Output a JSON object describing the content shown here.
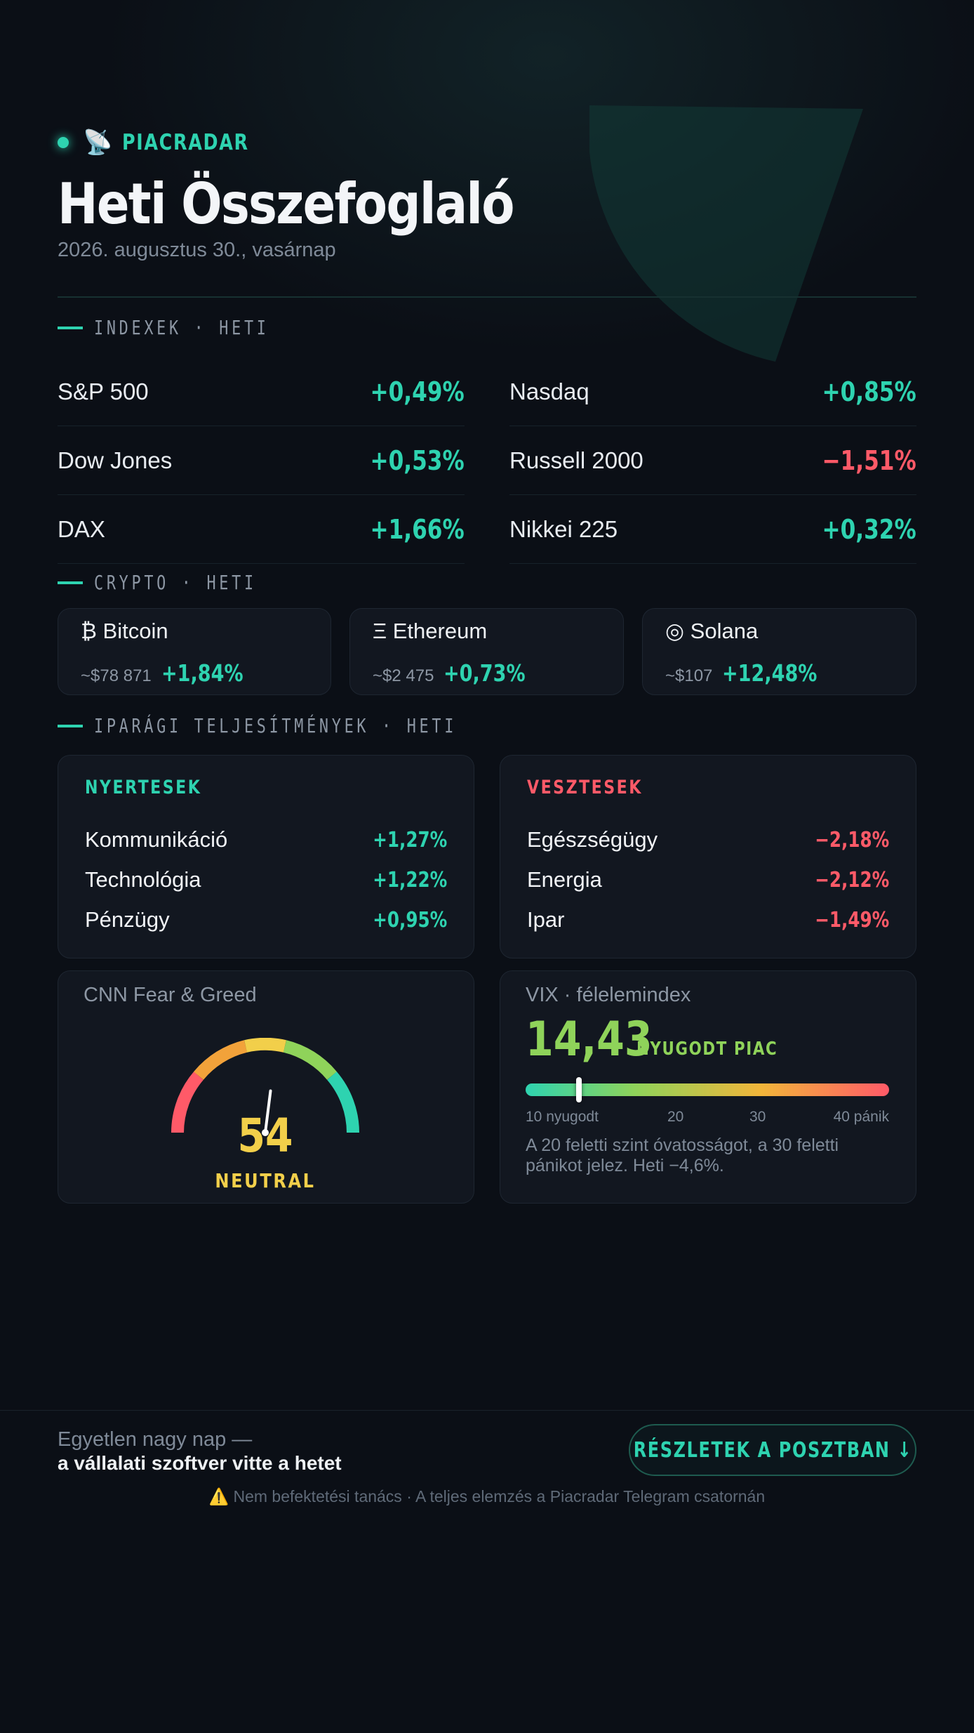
{
  "brand": {
    "icon": "📡",
    "name": "PIACRADAR"
  },
  "title": "Heti Összefoglaló",
  "date": "2026. augusztus 30., vasárnap",
  "indexes": {
    "label": "INDEXEK · HETI",
    "items": [
      {
        "name": "S&P 500",
        "change": "+0,49%",
        "direction": "up"
      },
      {
        "name": "Nasdaq",
        "change": "+0,85%",
        "direction": "up"
      },
      {
        "name": "Dow Jones",
        "change": "+0,53%",
        "direction": "up"
      },
      {
        "name": "Russell 2000",
        "change": "−1,51%",
        "direction": "down"
      },
      {
        "name": "DAX",
        "change": "+1,66%",
        "direction": "up"
      },
      {
        "name": "Nikkei 225",
        "change": "+0,32%",
        "direction": "up"
      }
    ]
  },
  "crypto": {
    "label": "CRYPTO · HETI",
    "items": [
      {
        "name": "₿ Bitcoin",
        "price": "~$78 871",
        "change": "+1,84%"
      },
      {
        "name": "Ξ Ethereum",
        "price": "~$2 475",
        "change": "+0,73%"
      },
      {
        "name": "◎ Solana",
        "price": "~$107",
        "change": "+12,48%"
      }
    ]
  },
  "sectors": {
    "label": "IPARÁGI TELJESÍTMÉNYEK · HETI",
    "winners": {
      "title": "NYERTESEK",
      "items": [
        {
          "name": "Kommunikáció",
          "change": "+1,27%"
        },
        {
          "name": "Technológia",
          "change": "+1,22%"
        },
        {
          "name": "Pénzügy",
          "change": "+0,95%"
        }
      ]
    },
    "losers": {
      "title": "VESZTESEK",
      "items": [
        {
          "name": "Egészségügy",
          "change": "−2,18%"
        },
        {
          "name": "Energia",
          "change": "−2,12%"
        },
        {
          "name": "Ipar",
          "change": "−1,49%"
        }
      ]
    }
  },
  "fear_greed": {
    "title": "CNN Fear & Greed",
    "value": "54",
    "score": 54,
    "label": "NEUTRAL"
  },
  "vix": {
    "title": "VIX · félelemindex",
    "value": "14,43",
    "level": 14.43,
    "scale_min": 10,
    "scale_max": 40,
    "state": "NYUGODT PIAC",
    "ticks": [
      "10 nyugodt",
      "20",
      "30",
      "40 pánik"
    ],
    "note": "A 20 feletti szint óvatosságot, a 30 feletti pánikot jelez. Heti −4,6%."
  },
  "footer": {
    "lead": "Egyetlen nagy nap —",
    "sub": "a vállalati szoftver vitte a hetet",
    "cta": "RÉSZLETEK A POSZTBAN ↓",
    "disclaimer_icon": "⚠️",
    "disclaimer": "Nem befektetési tanács · A teljes elemzés a Piacradar Telegram csatornán"
  },
  "colors": {
    "accent": "#2ed3b0",
    "negative": "#ff5a68",
    "neutral": "#f2cf4a",
    "calm": "#8fd35a",
    "background": "#0b0f16"
  }
}
